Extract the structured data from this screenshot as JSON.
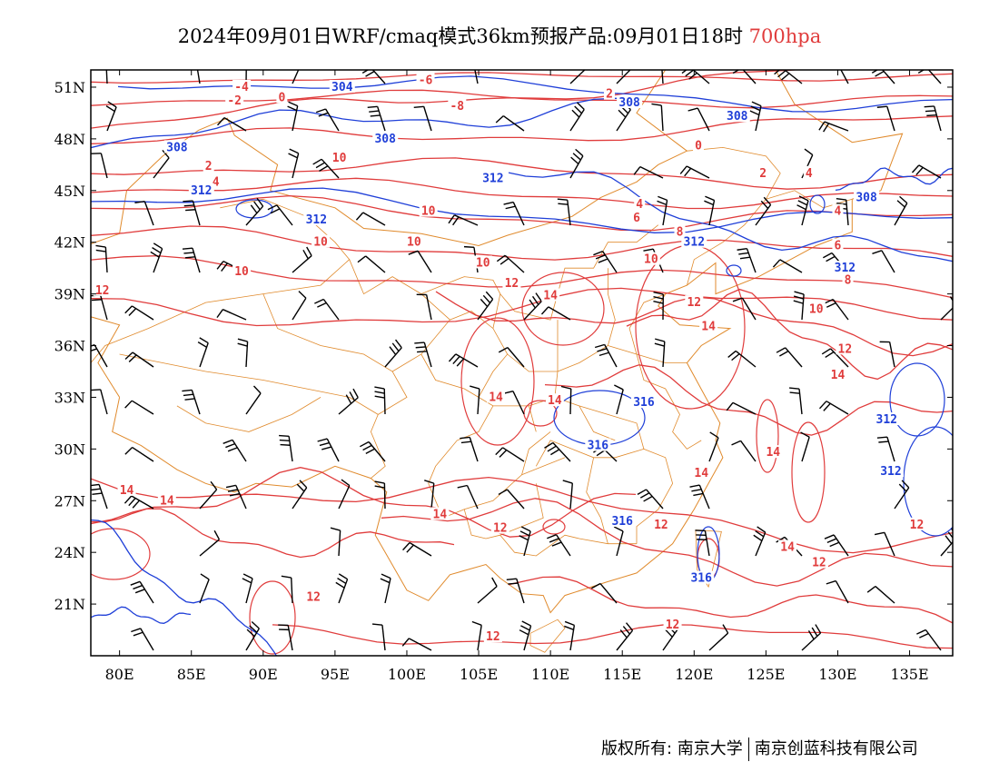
{
  "title": {
    "main": "2024年09月01日WRF/cmaq模式36km预报产品:09月01日18时",
    "level": "700hpa"
  },
  "colors": {
    "temperature": "#e03c3c",
    "height": "#1f3fd8",
    "border": "#e08a2c",
    "wind": "#000000",
    "level_text": "#e03c3c"
  },
  "map": {
    "lon_range": [
      78,
      138
    ],
    "lat_range": [
      18,
      52
    ],
    "lon_ticks": [
      80,
      85,
      90,
      95,
      100,
      105,
      110,
      115,
      120,
      125,
      130,
      135
    ],
    "lat_ticks": [
      21,
      24,
      27,
      30,
      33,
      36,
      39,
      42,
      45,
      48,
      51
    ],
    "lon_tick_labels": [
      "80E",
      "85E",
      "90E",
      "95E",
      "100E",
      "105E",
      "110E",
      "115E",
      "120E",
      "125E",
      "130E",
      "135E"
    ],
    "lat_tick_labels": [
      "21N",
      "24N",
      "27N",
      "30N",
      "33N",
      "36N",
      "39N",
      "42N",
      "45N",
      "48N",
      "51N"
    ]
  },
  "height_labels": [
    {
      "text": "304",
      "lon": 95.5,
      "lat": 51.0
    },
    {
      "text": "308",
      "lon": 115.5,
      "lat": 50.1
    },
    {
      "text": "308",
      "lon": 123.0,
      "lat": 49.3
    },
    {
      "text": "308",
      "lon": 98.5,
      "lat": 48.0
    },
    {
      "text": "308",
      "lon": 84.0,
      "lat": 47.5
    },
    {
      "text": "312",
      "lon": 106.0,
      "lat": 45.7
    },
    {
      "text": "312",
      "lon": 85.7,
      "lat": 45.0
    },
    {
      "text": "312",
      "lon": 93.7,
      "lat": 43.3
    },
    {
      "text": "308",
      "lon": 132.0,
      "lat": 44.6
    },
    {
      "text": "312",
      "lon": 120.0,
      "lat": 42.0
    },
    {
      "text": "312",
      "lon": 130.5,
      "lat": 40.5
    },
    {
      "text": "316",
      "lon": 116.5,
      "lat": 32.7
    },
    {
      "text": "316",
      "lon": 113.3,
      "lat": 30.2
    },
    {
      "text": "316",
      "lon": 115.0,
      "lat": 25.8
    },
    {
      "text": "316",
      "lon": 120.5,
      "lat": 22.5
    },
    {
      "text": "312",
      "lon": 133.4,
      "lat": 31.7
    },
    {
      "text": "312",
      "lon": 133.7,
      "lat": 28.7
    }
  ],
  "temp_labels": [
    {
      "text": "-6",
      "lon": 101.3,
      "lat": 51.4
    },
    {
      "text": "-4",
      "lon": 88.5,
      "lat": 51.0
    },
    {
      "text": "-2",
      "lon": 88.0,
      "lat": 50.2
    },
    {
      "text": "0",
      "lon": 91.3,
      "lat": 50.4
    },
    {
      "text": "2",
      "lon": 114.1,
      "lat": 50.6
    },
    {
      "text": "-8",
      "lon": 103.5,
      "lat": 49.9
    },
    {
      "text": "0",
      "lon": 120.3,
      "lat": 47.6
    },
    {
      "text": "10",
      "lon": 95.3,
      "lat": 46.9
    },
    {
      "text": "2",
      "lon": 86.2,
      "lat": 46.4
    },
    {
      "text": "2",
      "lon": 124.8,
      "lat": 46.0
    },
    {
      "text": "4",
      "lon": 86.7,
      "lat": 45.5
    },
    {
      "text": "4",
      "lon": 128.0,
      "lat": 46.0
    },
    {
      "text": "4",
      "lon": 116.2,
      "lat": 44.2
    },
    {
      "text": "6",
      "lon": 116.0,
      "lat": 43.4
    },
    {
      "text": "4",
      "lon": 130.0,
      "lat": 43.8
    },
    {
      "text": "10",
      "lon": 101.5,
      "lat": 43.8
    },
    {
      "text": "8",
      "lon": 119.0,
      "lat": 42.6
    },
    {
      "text": "6",
      "lon": 130.0,
      "lat": 41.8
    },
    {
      "text": "10",
      "lon": 94.0,
      "lat": 42.0
    },
    {
      "text": "10",
      "lon": 100.5,
      "lat": 42.0
    },
    {
      "text": "10",
      "lon": 117.0,
      "lat": 41.0
    },
    {
      "text": "10",
      "lon": 105.3,
      "lat": 40.8
    },
    {
      "text": "10",
      "lon": 88.5,
      "lat": 40.3
    },
    {
      "text": "8",
      "lon": 130.7,
      "lat": 39.8
    },
    {
      "text": "12",
      "lon": 78.8,
      "lat": 39.2
    },
    {
      "text": "12",
      "lon": 107.3,
      "lat": 39.6
    },
    {
      "text": "14",
      "lon": 110.0,
      "lat": 38.9
    },
    {
      "text": "12",
      "lon": 120.0,
      "lat": 38.5
    },
    {
      "text": "10",
      "lon": 128.5,
      "lat": 38.1
    },
    {
      "text": "14",
      "lon": 121.0,
      "lat": 37.1
    },
    {
      "text": "12",
      "lon": 130.5,
      "lat": 35.8
    },
    {
      "text": "14",
      "lon": 130.0,
      "lat": 34.3
    },
    {
      "text": "14",
      "lon": 106.2,
      "lat": 33.0
    },
    {
      "text": "14",
      "lon": 110.3,
      "lat": 32.8
    },
    {
      "text": "14",
      "lon": 125.5,
      "lat": 29.8
    },
    {
      "text": "14",
      "lon": 120.5,
      "lat": 28.6
    },
    {
      "text": "14",
      "lon": 80.5,
      "lat": 27.6
    },
    {
      "text": "14",
      "lon": 83.3,
      "lat": 27.0
    },
    {
      "text": "14",
      "lon": 102.3,
      "lat": 26.2
    },
    {
      "text": "12",
      "lon": 106.5,
      "lat": 25.4
    },
    {
      "text": "12",
      "lon": 117.7,
      "lat": 25.6
    },
    {
      "text": "12",
      "lon": 135.5,
      "lat": 25.6
    },
    {
      "text": "14",
      "lon": 126.5,
      "lat": 24.3
    },
    {
      "text": "12",
      "lon": 128.7,
      "lat": 23.4
    },
    {
      "text": "12",
      "lon": 93.5,
      "lat": 21.4
    },
    {
      "text": "12",
      "lon": 118.5,
      "lat": 19.8
    },
    {
      "text": "12",
      "lon": 106.0,
      "lat": 19.1
    }
  ],
  "copyright": {
    "owner": "版权所有: 南京大学",
    "company": "南京创蓝科技有限公司"
  }
}
